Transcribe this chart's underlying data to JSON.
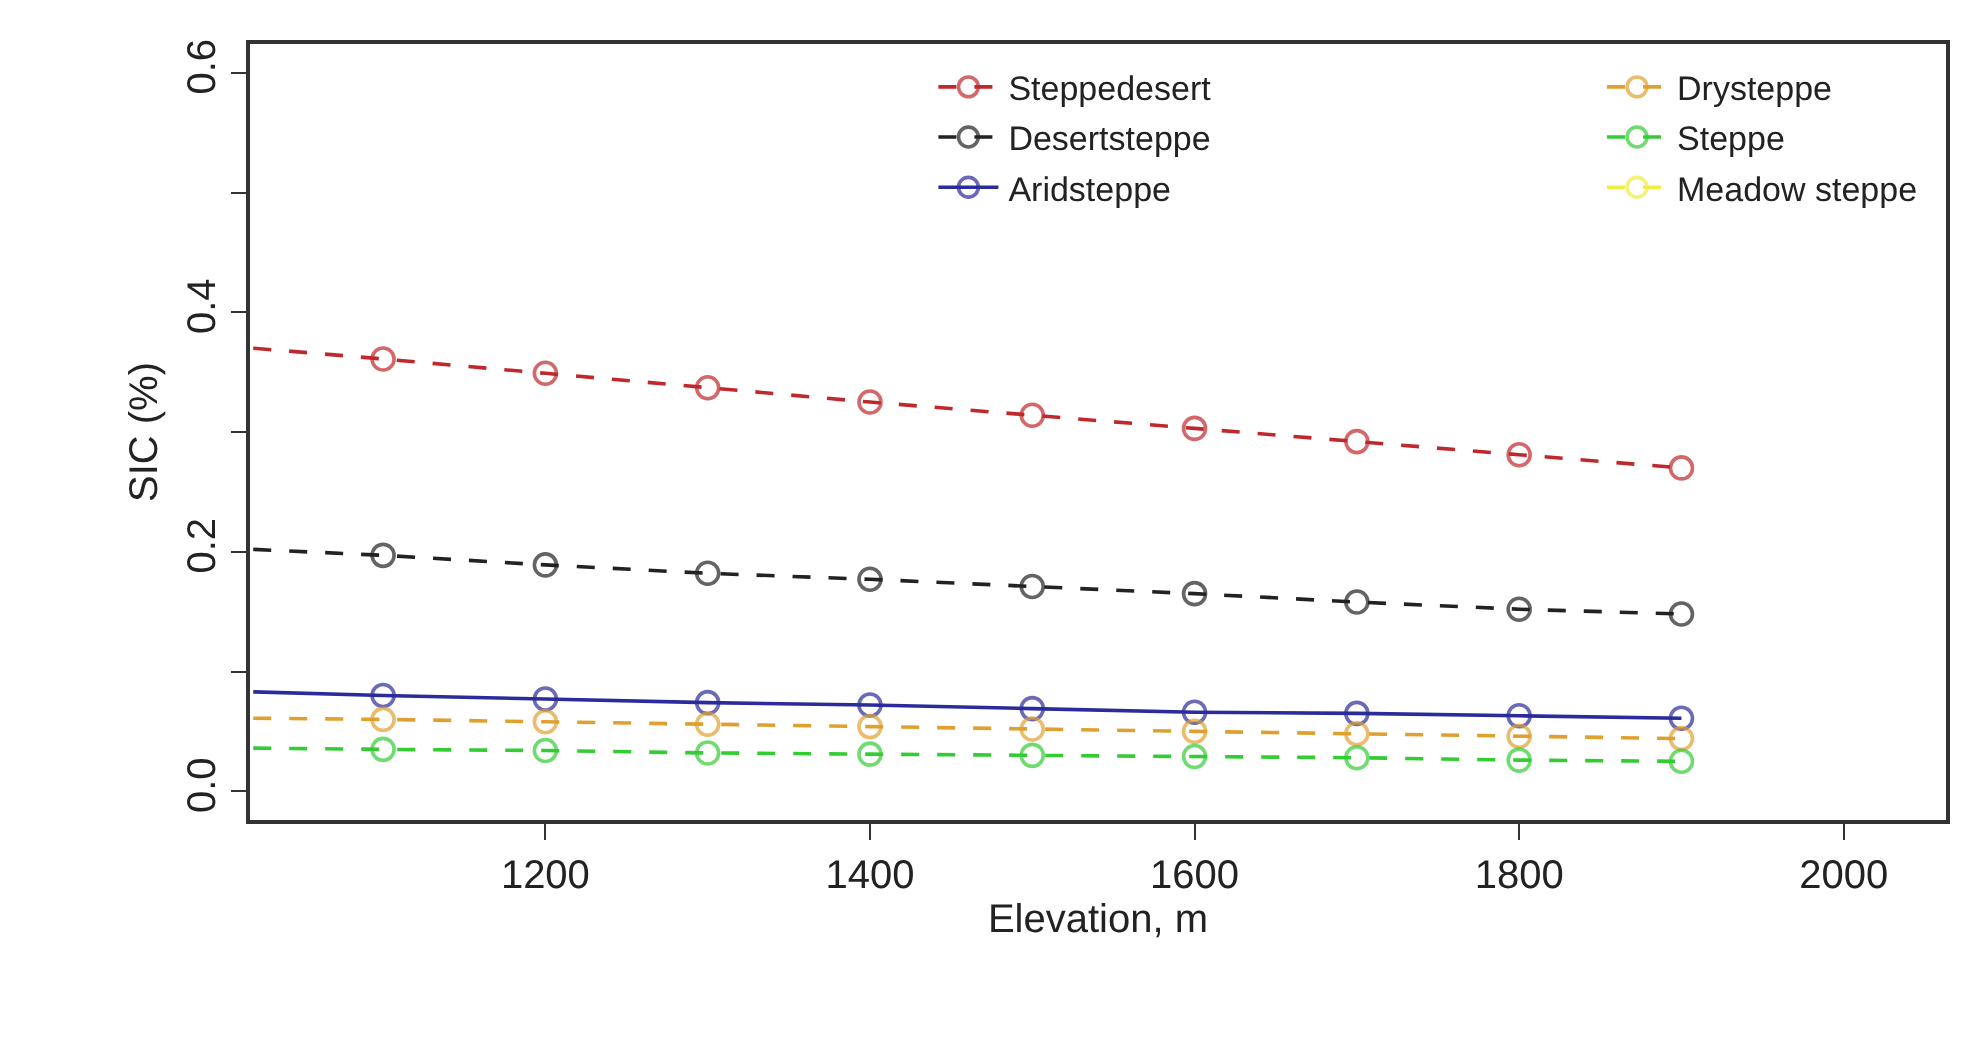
{
  "chart_data": {
    "type": "line",
    "xlabel": "Elevation, m",
    "ylabel": "SIC (%)",
    "x": [
      1020,
      1100,
      1200,
      1300,
      1400,
      1500,
      1600,
      1700,
      1800,
      1900
    ],
    "xlim": [
      1018,
      2063
    ],
    "xticks": [
      1200,
      1400,
      1600,
      1800,
      2000
    ],
    "ylim": [
      -0.024,
      0.624
    ],
    "yticks": [
      {
        "value": 0,
        "label": "0.0"
      },
      {
        "value": 0.1,
        "label": null
      },
      0.2,
      {
        "value": 0.3,
        "label": null
      },
      0.4,
      {
        "value": 0.5,
        "label": null
      },
      0.6
    ],
    "legend": "top right",
    "marker": "circle",
    "series": [
      {
        "name": "Steppedesert",
        "color": "#c0282c",
        "line_style": "dashed",
        "values": [
          0.37,
          0.361,
          0.349,
          0.337,
          0.325,
          0.314,
          0.303,
          0.292,
          0.281,
          0.27
        ]
      },
      {
        "name": "Desertsteppe",
        "color": "#222222",
        "line_style": "dashed",
        "values": [
          0.202,
          0.197,
          0.189,
          0.182,
          0.177,
          0.171,
          0.165,
          0.158,
          0.152,
          0.148
        ]
      },
      {
        "name": "Aridsteppe",
        "color": "#2b2b9b",
        "line_style": "solid",
        "values": [
          0.083,
          0.08,
          0.077,
          0.074,
          0.072,
          0.069,
          0.066,
          0.065,
          0.063,
          0.061
        ]
      },
      {
        "name": "Drysteppe",
        "color": "#e0a030",
        "line_style": "dashed",
        "values": [
          0.061,
          0.06,
          0.058,
          0.056,
          0.054,
          0.052,
          0.05,
          0.048,
          0.046,
          0.044
        ]
      },
      {
        "name": "Steppe",
        "color": "#33cc33",
        "line_style": "dashed",
        "values": [
          0.036,
          0.035,
          0.034,
          0.032,
          0.031,
          0.03,
          0.029,
          0.028,
          0.026,
          0.025
        ]
      },
      {
        "name": "Meadow steppe",
        "color": "#eeee44",
        "line_style": "dashed",
        "values": [
          null,
          null,
          null,
          null,
          null,
          null,
          null,
          null,
          null,
          null
        ]
      }
    ]
  }
}
